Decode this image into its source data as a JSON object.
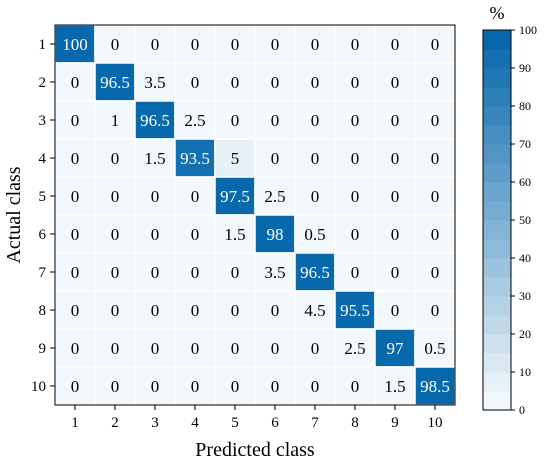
{
  "chart_data": {
    "type": "heatmap",
    "title": "",
    "xlabel": "Predicted class",
    "ylabel": "Actual class",
    "x_categories": [
      "1",
      "2",
      "3",
      "4",
      "5",
      "6",
      "7",
      "8",
      "9",
      "10"
    ],
    "y_categories": [
      "1",
      "2",
      "3",
      "4",
      "5",
      "6",
      "7",
      "8",
      "9",
      "10"
    ],
    "values": [
      [
        100,
        0,
        0,
        0,
        0,
        0,
        0,
        0,
        0,
        0
      ],
      [
        0,
        96.5,
        3.5,
        0,
        0,
        0,
        0,
        0,
        0,
        0
      ],
      [
        0,
        1,
        96.5,
        2.5,
        0,
        0,
        0,
        0,
        0,
        0
      ],
      [
        0,
        0,
        1.5,
        93.5,
        5,
        0,
        0,
        0,
        0,
        0
      ],
      [
        0,
        0,
        0,
        0,
        97.5,
        2.5,
        0,
        0,
        0,
        0
      ],
      [
        0,
        0,
        0,
        0,
        1.5,
        98,
        0.5,
        0,
        0,
        0
      ],
      [
        0,
        0,
        0,
        0,
        0,
        3.5,
        96.5,
        0,
        0,
        0
      ],
      [
        0,
        0,
        0,
        0,
        0,
        0,
        4.5,
        95.5,
        0,
        0
      ],
      [
        0,
        0,
        0,
        0,
        0,
        0,
        0,
        2.5,
        97,
        0.5
      ],
      [
        0,
        0,
        0,
        0,
        0,
        0,
        0,
        0,
        1.5,
        98.5
      ]
    ],
    "colorbar": {
      "label": "%",
      "range": [
        0,
        100
      ],
      "ticks": [
        0,
        10,
        20,
        30,
        40,
        50,
        60,
        70,
        80,
        90,
        100
      ],
      "low_color": "#f2f8fb",
      "high_color": "#0868ac",
      "levels": 20
    },
    "grid": true,
    "legend": "right"
  }
}
